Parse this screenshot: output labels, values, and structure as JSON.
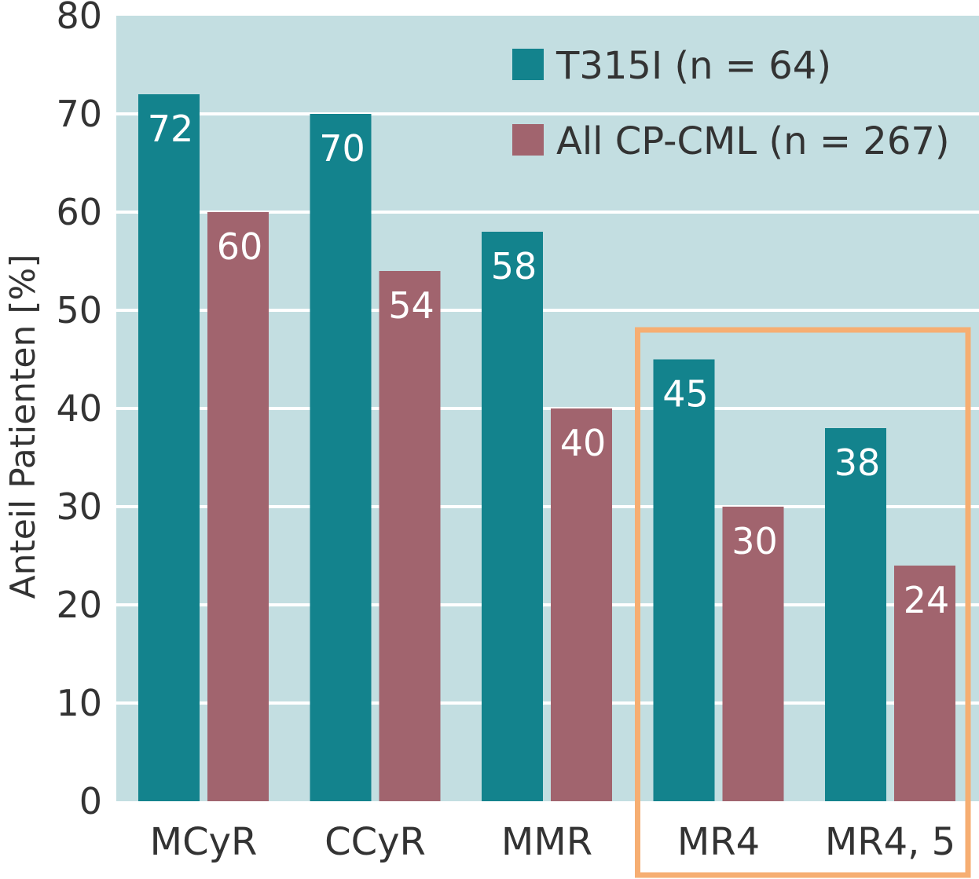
{
  "chart_data": {
    "type": "bar",
    "categories": [
      "MCyR",
      "CCyR",
      "MMR",
      "MR4",
      "MR4, 5"
    ],
    "series": [
      {
        "name": "T315I (n = 64)",
        "color": "#13838d",
        "values": [
          72,
          70,
          58,
          45,
          38
        ]
      },
      {
        "name": "All CP-CML (n = 267)",
        "color": "#a1646e",
        "values": [
          60,
          54,
          40,
          30,
          24
        ]
      }
    ],
    "title": "",
    "xlabel": "",
    "ylabel": "Anteil Patienten [%]",
    "ylim": [
      0,
      80
    ],
    "yticks": [
      0,
      10,
      20,
      30,
      40,
      50,
      60,
      70,
      80
    ],
    "grid": true,
    "legend_position": "top-right",
    "plot_background": "#c3dee1",
    "highlight": {
      "categories": [
        "MR4",
        "MR4, 5"
      ],
      "color": "#f6ae72"
    }
  }
}
